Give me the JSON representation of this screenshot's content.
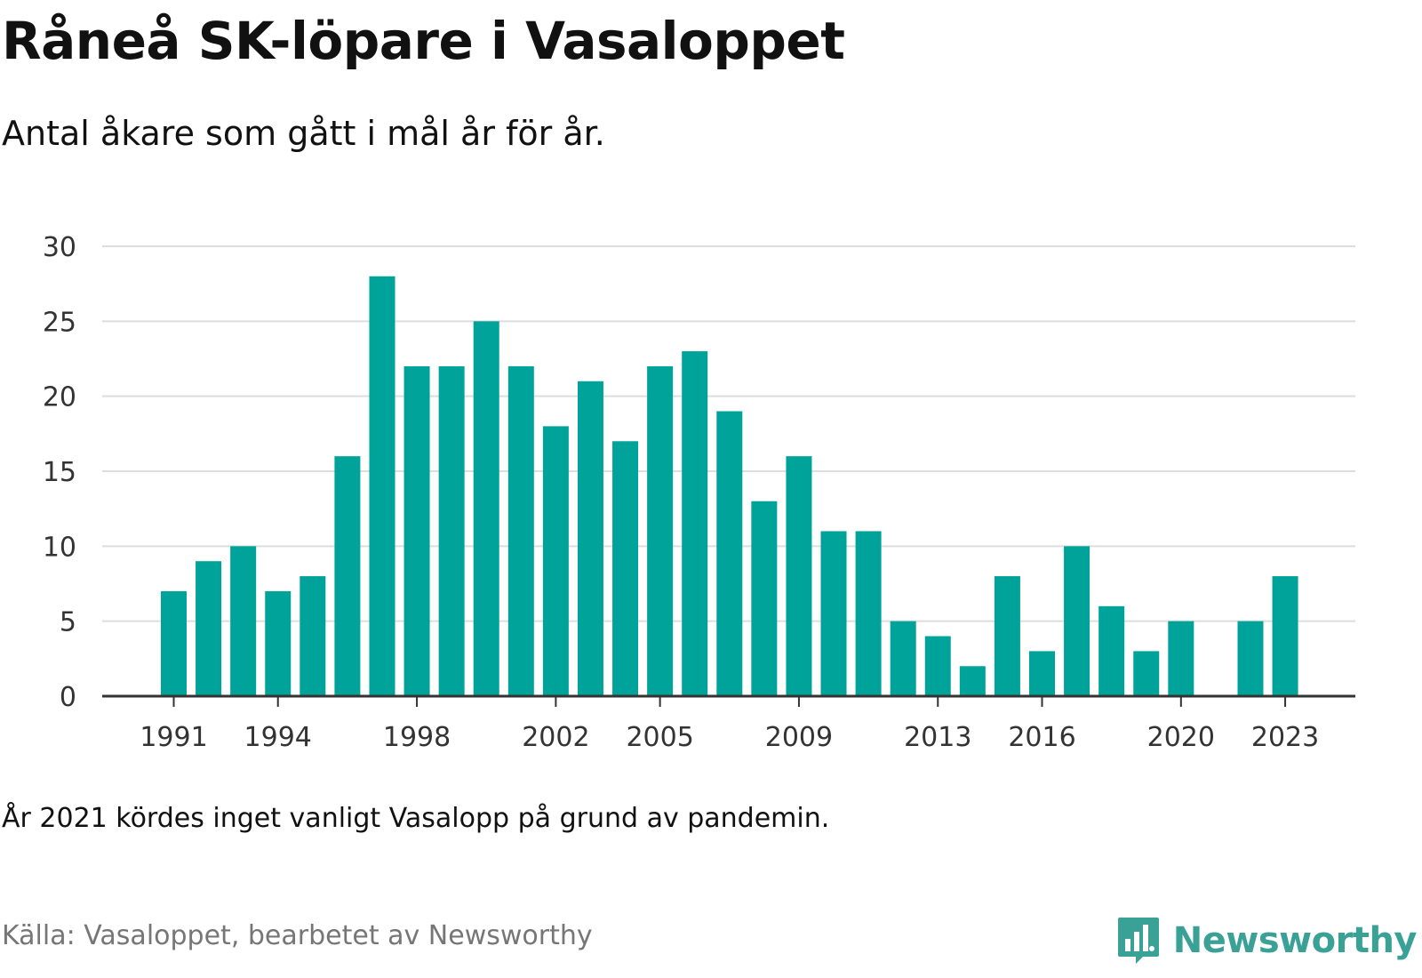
{
  "title": "Råneå SK-löpare i Vasaloppet",
  "subtitle": "Antal åkare som gått i mål år för år.",
  "note": "År 2021 kördes inget vanligt Vasalopp på grund av pandemin.",
  "source": "Källa: Vasaloppet, bearbetet av Newsworthy",
  "brand": {
    "name": "Newsworthy",
    "icon": "newsworthy-logo-icon",
    "color": "#3aa197"
  },
  "chart_data": {
    "type": "bar",
    "title": "Råneå SK-löpare i Vasaloppet",
    "subtitle": "Antal åkare som gått i mål år för år.",
    "xlabel": "",
    "ylabel": "",
    "ylim": [
      0,
      30
    ],
    "yticks": [
      0,
      5,
      10,
      15,
      20,
      25,
      30
    ],
    "xticks": [
      1991,
      1994,
      1998,
      2002,
      2005,
      2009,
      2013,
      2016,
      2020,
      2023
    ],
    "grid": true,
    "bar_color": "#00a39a",
    "categories": [
      1991,
      1992,
      1993,
      1994,
      1995,
      1996,
      1997,
      1998,
      1999,
      2000,
      2001,
      2002,
      2003,
      2004,
      2005,
      2006,
      2007,
      2008,
      2009,
      2010,
      2011,
      2012,
      2013,
      2014,
      2015,
      2016,
      2017,
      2018,
      2019,
      2020,
      2021,
      2022,
      2023
    ],
    "values": [
      7,
      9,
      10,
      7,
      8,
      16,
      28,
      22,
      22,
      25,
      22,
      18,
      21,
      17,
      22,
      23,
      19,
      13,
      16,
      11,
      11,
      5,
      4,
      2,
      8,
      3,
      10,
      6,
      3,
      5,
      null,
      5,
      8
    ]
  }
}
